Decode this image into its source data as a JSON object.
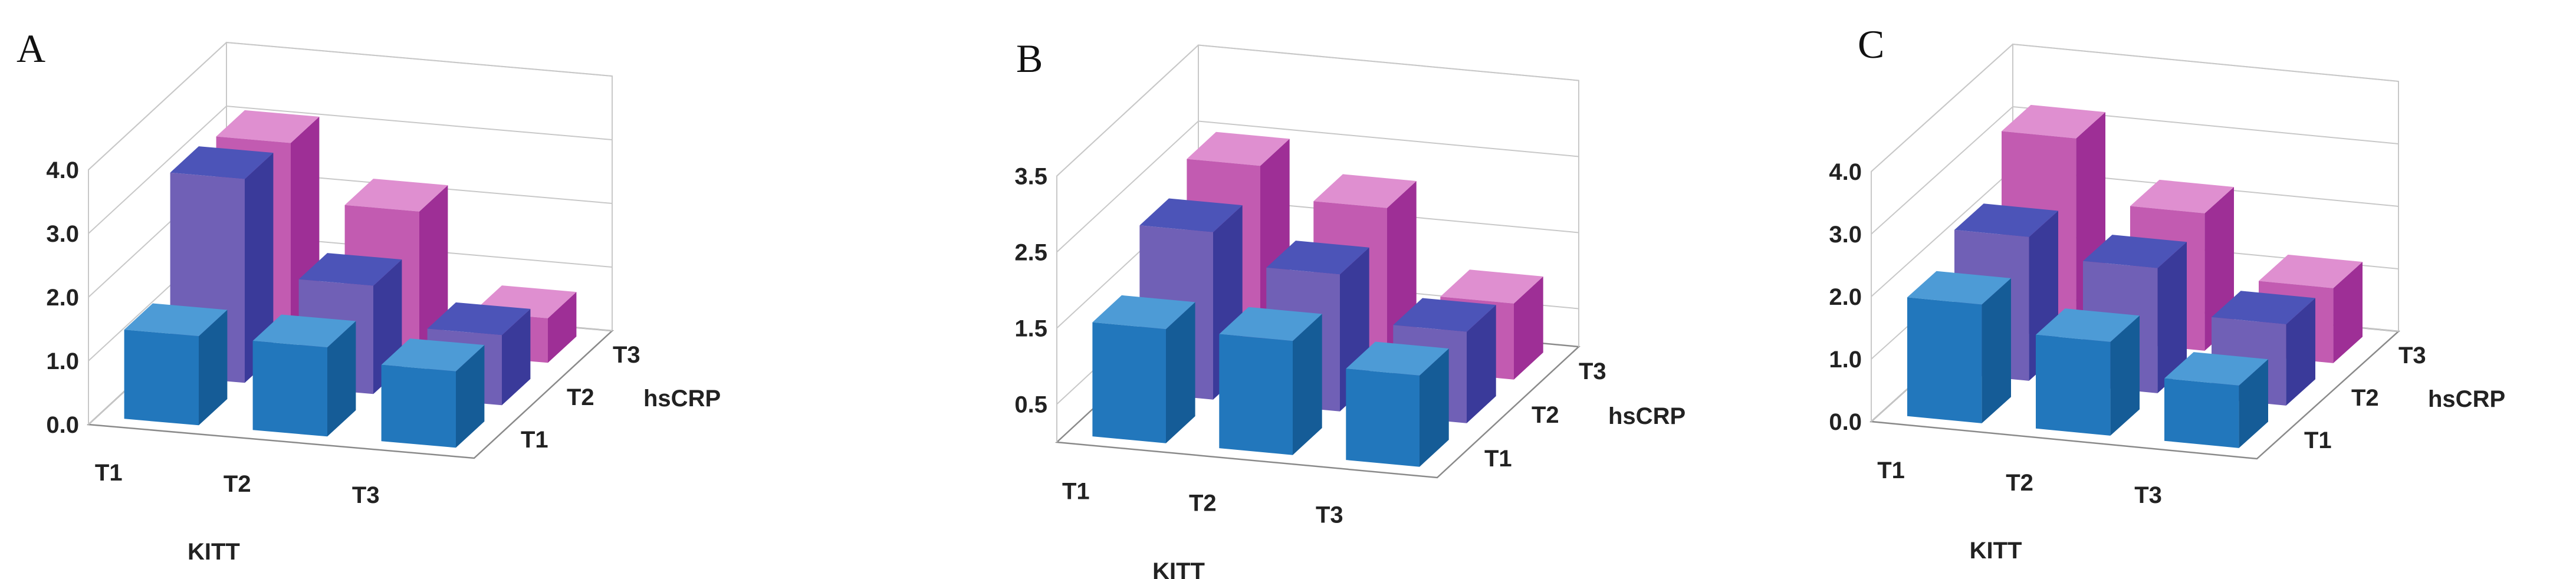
{
  "chart_data": [
    {
      "type": "bar",
      "subtype": "3d-column",
      "panel": "A",
      "xlabel": "KITT",
      "depth_label": "hsCRP",
      "categories": [
        "T1",
        "T2",
        "T3"
      ],
      "depth_categories": [
        "T1",
        "T2",
        "T3"
      ],
      "yticks": [
        "0.0",
        "1.0",
        "2.0",
        "3.0",
        "4.0"
      ],
      "ylim": [
        0,
        4
      ],
      "series": [
        {
          "name": "T1",
          "values": [
            1.4,
            1.4,
            1.2
          ]
        },
        {
          "name": "T2",
          "values": [
            3.2,
            1.7,
            1.1
          ]
        },
        {
          "name": "T3",
          "values": [
            3.1,
            2.2,
            0.7
          ]
        }
      ]
    },
    {
      "type": "bar",
      "subtype": "3d-column",
      "panel": "B",
      "xlabel": "KITT",
      "depth_label": "hsCRP",
      "categories": [
        "T1",
        "T2",
        "T3"
      ],
      "depth_categories": [
        "T1",
        "T2",
        "T3"
      ],
      "yticks": [
        "0.5",
        "1.5",
        "2.5",
        "3.5"
      ],
      "ylim": [
        0,
        3.5
      ],
      "series": [
        {
          "name": "T1",
          "values": [
            1.5,
            1.5,
            1.2
          ]
        },
        {
          "name": "T2",
          "values": [
            2.2,
            1.8,
            1.2
          ]
        },
        {
          "name": "T3",
          "values": [
            2.5,
            2.1,
            1.0
          ]
        }
      ]
    },
    {
      "type": "bar",
      "subtype": "3d-column",
      "panel": "C",
      "xlabel": "KITT",
      "depth_label": "hsCRP",
      "categories": [
        "T1",
        "T2",
        "T3"
      ],
      "depth_categories": [
        "T1",
        "T2",
        "T3"
      ],
      "yticks": [
        "0.0",
        "1.0",
        "2.0",
        "3.0",
        "4.0"
      ],
      "ylim": [
        0,
        4
      ],
      "series": [
        {
          "name": "T1",
          "values": [
            1.9,
            1.5,
            1.0
          ]
        },
        {
          "name": "T2",
          "values": [
            2.3,
            2.0,
            1.3
          ]
        },
        {
          "name": "T3",
          "values": [
            3.2,
            2.2,
            1.2
          ]
        }
      ]
    }
  ],
  "colors": {
    "T1": {
      "front": "#2277bc",
      "side": "#155c97",
      "top": "#4d9bd6"
    },
    "T2": {
      "front": "#7060b6",
      "side": "#3a3a9a",
      "top": "#4c54b8"
    },
    "T3": {
      "front": "#c25bb1",
      "side": "#9e2f96",
      "top": "#df8fd0"
    }
  }
}
